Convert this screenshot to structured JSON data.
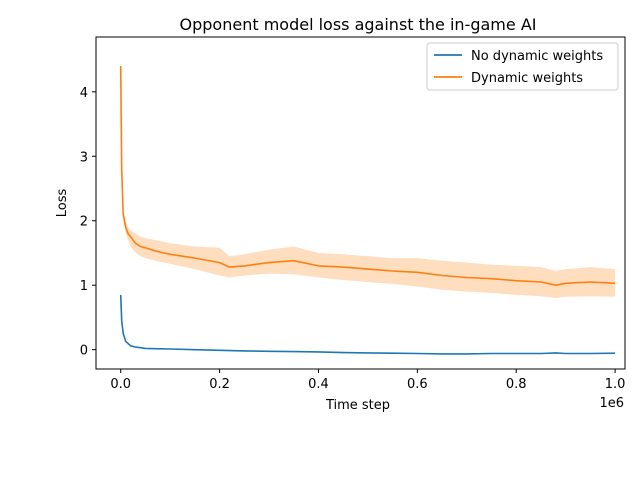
{
  "chart_data": {
    "type": "line",
    "title": "Opponent model loss against the in-game AI",
    "xlabel": "Time step",
    "ylabel": "Loss",
    "x_offset_label": "1e6",
    "xlim": [
      -0.05,
      1.02
    ],
    "ylim": [
      -0.3,
      4.85
    ],
    "xticks": [
      0.0,
      0.2,
      0.4,
      0.6,
      0.8,
      1.0
    ],
    "xtick_labels": [
      "0.0",
      "0.2",
      "0.4",
      "0.6",
      "0.8",
      "1.0"
    ],
    "yticks": [
      0,
      1,
      2,
      3,
      4
    ],
    "ytick_labels": [
      "0",
      "1",
      "2",
      "3",
      "4"
    ],
    "grid": false,
    "legend_position": "top-right",
    "colors": {
      "series_1": "#1f77b4",
      "series_2": "#ff7f0e",
      "band_2": "#ffd9b8"
    },
    "series": [
      {
        "name": "No dynamic weights",
        "x": [
          0.0,
          0.002,
          0.005,
          0.01,
          0.02,
          0.03,
          0.04,
          0.05,
          0.07,
          0.1,
          0.15,
          0.2,
          0.25,
          0.3,
          0.35,
          0.4,
          0.45,
          0.5,
          0.55,
          0.6,
          0.65,
          0.7,
          0.75,
          0.8,
          0.85,
          0.88,
          0.9,
          0.95,
          1.0
        ],
        "y": [
          0.85,
          0.45,
          0.25,
          0.13,
          0.06,
          0.04,
          0.03,
          0.02,
          0.015,
          0.01,
          0.0,
          -0.01,
          -0.02,
          -0.025,
          -0.03,
          -0.035,
          -0.045,
          -0.05,
          -0.055,
          -0.06,
          -0.065,
          -0.065,
          -0.06,
          -0.06,
          -0.06,
          -0.05,
          -0.06,
          -0.06,
          -0.055
        ]
      },
      {
        "name": "Dynamic weights",
        "x": [
          0.0,
          0.002,
          0.005,
          0.01,
          0.015,
          0.02,
          0.03,
          0.04,
          0.05,
          0.07,
          0.1,
          0.15,
          0.2,
          0.22,
          0.25,
          0.3,
          0.35,
          0.4,
          0.45,
          0.5,
          0.55,
          0.6,
          0.65,
          0.7,
          0.75,
          0.8,
          0.85,
          0.88,
          0.9,
          0.95,
          1.0
        ],
        "y": [
          4.4,
          2.8,
          2.1,
          1.9,
          1.8,
          1.75,
          1.65,
          1.6,
          1.58,
          1.53,
          1.48,
          1.42,
          1.35,
          1.28,
          1.3,
          1.35,
          1.38,
          1.3,
          1.28,
          1.25,
          1.22,
          1.2,
          1.15,
          1.12,
          1.1,
          1.07,
          1.05,
          1.0,
          1.03,
          1.05,
          1.03
        ],
        "lower": [
          4.4,
          2.8,
          2.05,
          1.8,
          1.7,
          1.6,
          1.5,
          1.45,
          1.42,
          1.38,
          1.33,
          1.25,
          1.15,
          1.12,
          1.15,
          1.18,
          1.17,
          1.12,
          1.08,
          1.05,
          1.02,
          0.98,
          0.93,
          0.9,
          0.88,
          0.85,
          0.83,
          0.8,
          0.82,
          0.83,
          0.82
        ],
        "upper": [
          4.4,
          2.8,
          2.15,
          2.0,
          1.9,
          1.85,
          1.8,
          1.75,
          1.73,
          1.7,
          1.65,
          1.6,
          1.58,
          1.45,
          1.48,
          1.55,
          1.6,
          1.5,
          1.48,
          1.45,
          1.42,
          1.42,
          1.38,
          1.35,
          1.32,
          1.3,
          1.28,
          1.22,
          1.25,
          1.28,
          1.25
        ]
      }
    ]
  }
}
